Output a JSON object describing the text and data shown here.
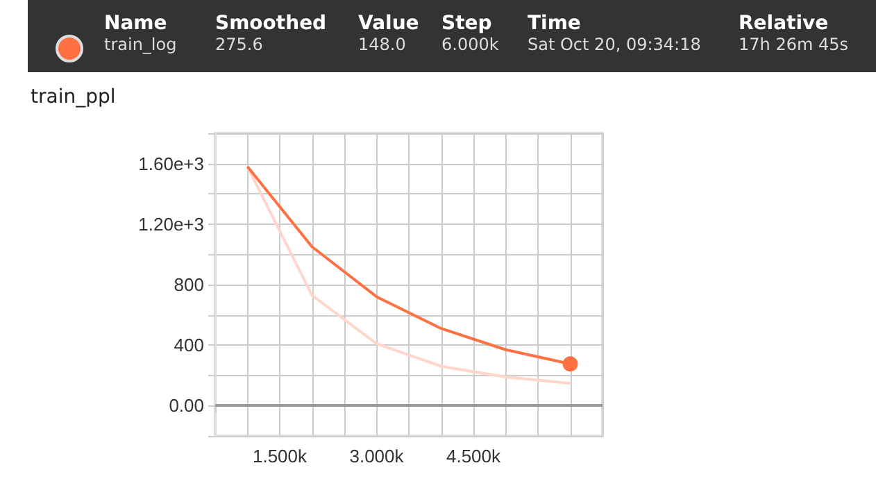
{
  "chart_data": {
    "type": "line",
    "title": "train_ppl",
    "annotations": [
      "Name",
      "Smoothed",
      "Value",
      "Step",
      "Time",
      "Relative",
      "275.6",
      "148.0",
      "6.000k",
      "Sat Oct 20, 09:34:18",
      "17h 26m 45s"
    ],
    "x": [
      1000,
      2000,
      3000,
      4000,
      5000,
      6000
    ],
    "series": [
      {
        "name": "train_log",
        "color": "#ff7043",
        "values": [
          1580,
          1050,
          720,
          510,
          370,
          275.6
        ]
      },
      {
        "color": "#ffd6c9",
        "values": [
          1580,
          730,
          410,
          260,
          190,
          148
        ]
      }
    ],
    "xlim": [
      500,
      6500
    ],
    "xticks": [
      {
        "value": 500,
        "label": null
      },
      {
        "value": 1000,
        "label": null
      },
      {
        "value": 1500,
        "label": "1.500k"
      },
      {
        "value": 2000,
        "label": null
      },
      {
        "value": 2500,
        "label": null
      },
      {
        "value": 3000,
        "label": "3.000k"
      },
      {
        "value": 3500,
        "label": null
      },
      {
        "value": 4000,
        "label": null
      },
      {
        "value": 4500,
        "label": "4.500k"
      },
      {
        "value": 5000,
        "label": null
      },
      {
        "value": 5500,
        "label": null
      },
      {
        "value": 6000,
        "label": null
      },
      {
        "value": 6500,
        "label": null
      }
    ],
    "ylim": [
      -200,
      1800
    ],
    "yticks": [
      {
        "value": -200,
        "label": null
      },
      {
        "value": 0,
        "label": "0.00"
      },
      {
        "value": 200,
        "label": null
      },
      {
        "value": 400,
        "label": "400"
      },
      {
        "value": 600,
        "label": null
      },
      {
        "value": 800,
        "label": "800"
      },
      {
        "value": 1000,
        "label": null
      },
      {
        "value": 1200,
        "label": "1.20e+3"
      },
      {
        "value": 1400,
        "label": null
      },
      {
        "value": 1600,
        "label": "1.60e+3"
      },
      {
        "value": 1800,
        "label": null
      }
    ],
    "ref_lines": [
      {
        "axis": "y",
        "value": 0,
        "color": "#999999"
      }
    ],
    "grid": true,
    "legend": "top",
    "marker": "none",
    "line_style": "solid"
  }
}
